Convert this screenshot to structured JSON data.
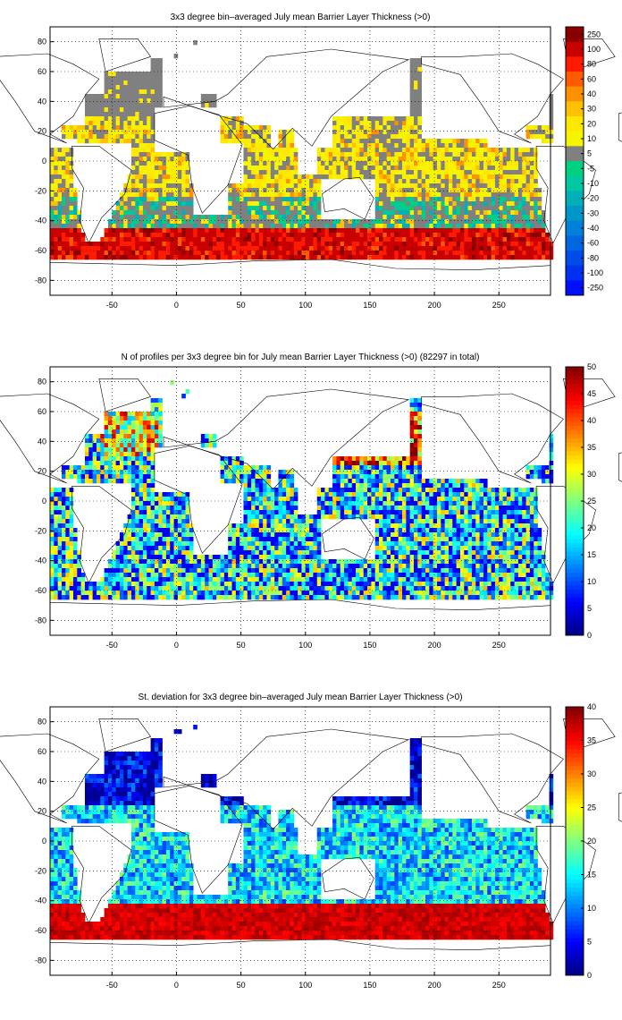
{
  "chart_data": [
    {
      "type": "heatmap",
      "title": "3x3 degree bin–averaged July mean Barrier Layer Thickness (>0)",
      "x_ticks": [
        -50,
        0,
        50,
        100,
        150,
        200,
        250
      ],
      "y_ticks": [
        80,
        60,
        40,
        20,
        0,
        -20,
        -40,
        -60,
        -80
      ],
      "xlim": [
        -98,
        290
      ],
      "ylim": [
        -90,
        90
      ],
      "grid": true,
      "colorbar": {
        "type": "discrete",
        "tick_labels": [
          "250",
          "100",
          "80",
          "60",
          "40",
          "30",
          "20",
          "10",
          "5",
          "-5",
          "-10",
          "-20",
          "-30",
          "-40",
          "-60",
          "-80",
          "-100",
          "-250"
        ],
        "colors": [
          "#8a0000",
          "#c80000",
          "#ff1a00",
          "#ff5a00",
          "#ff9000",
          "#ffc000",
          "#ffe800",
          "#f5f500",
          "#808080",
          "#00d080",
          "#00c8a0",
          "#00b0b8",
          "#0096c8",
          "#0080d8",
          "#0066e0",
          "#004ce8",
          "#0030f0",
          "#0010ff"
        ]
      },
      "bands": [
        {
          "lat": [
            47,
            50
          ],
          "class": "mixed",
          "values": [
            -5,
            5
          ]
        },
        {
          "lat": [
            5,
            30
          ],
          "class": "positive",
          "values": [
            5,
            40
          ]
        },
        {
          "lat": [
            -25,
            5
          ],
          "class": "positive",
          "values": [
            5,
            30
          ]
        },
        {
          "lat": [
            -45,
            -25
          ],
          "class": "negative",
          "values": [
            -40,
            -5
          ]
        },
        {
          "lat": [
            -65,
            -45
          ],
          "class": "positive",
          "values": [
            60,
            250
          ]
        }
      ]
    },
    {
      "type": "heatmap",
      "title": "N of profiles per 3x3 degree bin for July mean Barrier Layer Thickness (>0) (82297 in total)",
      "x_ticks": [
        -50,
        0,
        50,
        100,
        150,
        200,
        250
      ],
      "y_ticks": [
        80,
        60,
        40,
        20,
        0,
        -20,
        -40,
        -60,
        -80
      ],
      "xlim": [
        -98,
        290
      ],
      "ylim": [
        -90,
        90
      ],
      "grid": true,
      "colorbar": {
        "type": "continuous",
        "colormap": "jet",
        "range": [
          0,
          50
        ],
        "ticks": [
          0,
          5,
          10,
          15,
          20,
          25,
          30,
          35,
          40,
          45,
          50
        ]
      },
      "bands": [
        {
          "lat": [
            30,
            60
          ],
          "class": "high",
          "values": [
            25,
            50
          ]
        },
        {
          "lat": [
            -65,
            30
          ],
          "class": "medium",
          "values": [
            10,
            40
          ]
        }
      ]
    },
    {
      "type": "heatmap",
      "title": "St. deviation for 3x3 degree bin–averaged July mean Barrier Layer Thickness (>0)",
      "x_ticks": [
        -50,
        0,
        50,
        100,
        150,
        200,
        250
      ],
      "y_ticks": [
        80,
        60,
        40,
        20,
        0,
        -20,
        -40,
        -60,
        -80
      ],
      "xlim": [
        -98,
        290
      ],
      "ylim": [
        -90,
        90
      ],
      "grid": true,
      "colorbar": {
        "type": "continuous",
        "colormap": "jet",
        "range": [
          0,
          40
        ],
        "ticks": [
          0,
          5,
          10,
          15,
          20,
          25,
          30,
          35,
          40
        ]
      },
      "bands": [
        {
          "lat": [
            20,
            70
          ],
          "class": "low",
          "values": [
            0,
            8
          ]
        },
        {
          "lat": [
            -40,
            20
          ],
          "class": "medium",
          "values": [
            5,
            20
          ]
        },
        {
          "lat": [
            -65,
            -40
          ],
          "class": "high",
          "values": [
            30,
            40
          ]
        }
      ]
    }
  ]
}
